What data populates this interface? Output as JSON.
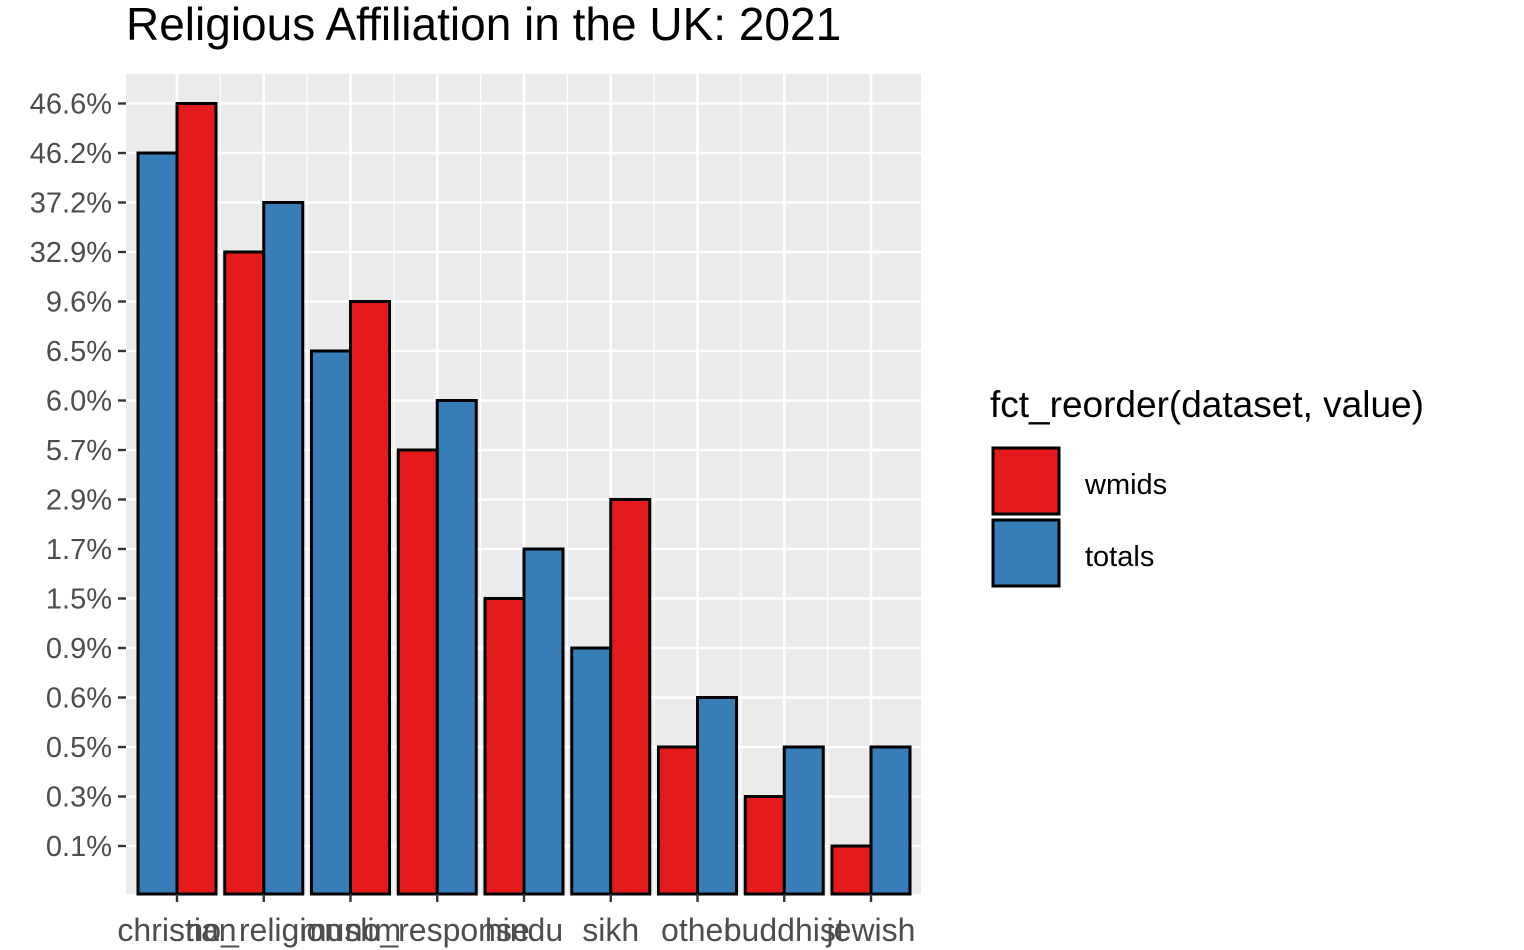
{
  "chart_data": {
    "type": "bar",
    "title": "Religious Affiliation in the UK: 2021",
    "xlabel": "",
    "ylabel": "",
    "categories": [
      "christian",
      "no_religion",
      "muslim",
      "no_response",
      "hindu",
      "sikh",
      "other",
      "buddhist",
      "jewish"
    ],
    "y_tick_labels": [
      "0.1%",
      "0.3%",
      "0.5%",
      "0.6%",
      "0.9%",
      "1.5%",
      "1.7%",
      "2.9%",
      "5.7%",
      "6.0%",
      "6.5%",
      "9.6%",
      "32.9%",
      "37.2%",
      "46.2%",
      "46.6%"
    ],
    "y_axis_note": "discrete axis: each tick label is one distinct value level",
    "series": [
      {
        "name": "wmids",
        "color": "#E41A1C",
        "values_label": [
          "46.6%",
          "32.9%",
          "9.6%",
          "5.7%",
          "1.5%",
          "2.9%",
          "0.5%",
          "0.3%",
          "0.1%"
        ]
      },
      {
        "name": "totals",
        "color": "#377EB8",
        "values_label": [
          "46.2%",
          "37.2%",
          "6.5%",
          "6.0%",
          "1.7%",
          "0.9%",
          "0.6%",
          "0.5%",
          "0.5%"
        ]
      }
    ],
    "bar_order": [
      [
        "totals",
        "wmids"
      ],
      [
        "wmids",
        "totals"
      ],
      [
        "totals",
        "wmids"
      ],
      [
        "wmids",
        "totals"
      ],
      [
        "wmids",
        "totals"
      ],
      [
        "totals",
        "wmids"
      ],
      [
        "wmids",
        "totals"
      ],
      [
        "wmids",
        "totals"
      ],
      [
        "wmids",
        "totals"
      ]
    ],
    "grid": true,
    "panel_background": "#EBEBEB",
    "legend": {
      "title": "fct_reorder(dataset, value)",
      "placement": "right",
      "entries": [
        {
          "label": "wmids",
          "color": "#E41A1C"
        },
        {
          "label": "totals",
          "color": "#377EB8"
        }
      ]
    }
  }
}
